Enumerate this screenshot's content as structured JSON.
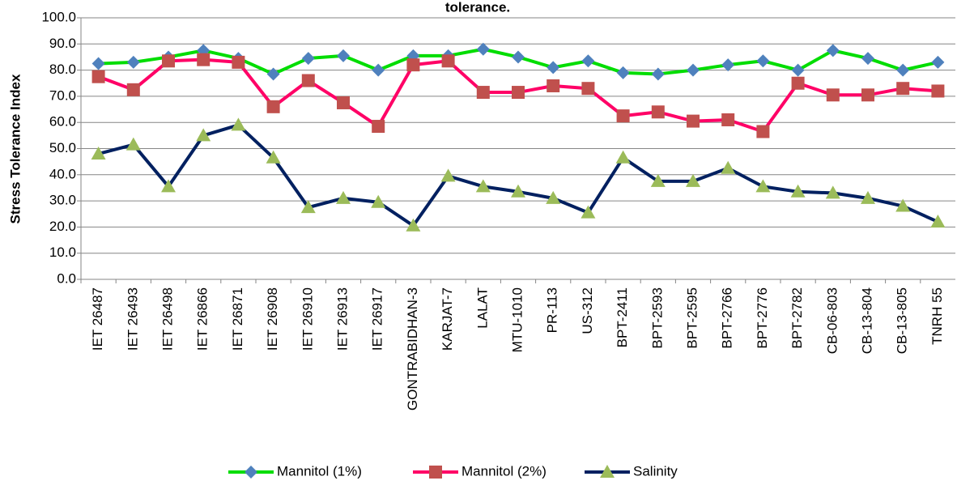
{
  "chart_data": {
    "type": "line",
    "title": "tolerance.",
    "y_label": "Stress Tolerance Index",
    "categories": [
      "IET 26487",
      "IET 26493",
      "IET 26498",
      "IET 26866",
      "IET 26871",
      "IET 26908",
      "IET 26910",
      "IET 26913",
      "IET 26917",
      "GONTRABIDHAN-3",
      "KARJAT-7",
      "LALAT",
      "MTU-1010",
      "PR-113",
      "US-312",
      "BPT-2411",
      "BPT-2593",
      "BPT-2595",
      "BPT-2766",
      "BPT-2776",
      "BPT-2782",
      "CB-06-803",
      "CB-13-804",
      "CB-13-805",
      "TNRH 55"
    ],
    "series": [
      {
        "name": "Mannitol (1%)",
        "color": "#00dd00",
        "marker_color": "#4f81bd",
        "marker": "diamond",
        "values": [
          82.5,
          83,
          85,
          87.5,
          84.5,
          78.5,
          84.5,
          85.5,
          80,
          85.5,
          85.5,
          88,
          85,
          81,
          83.5,
          79,
          78.5,
          80,
          82,
          83.5,
          80,
          87.5,
          84.5,
          80,
          83
        ]
      },
      {
        "name": "Mannitol (2%)",
        "color": "#ff0066",
        "marker_color": "#c0504d",
        "marker": "square",
        "values": [
          77.5,
          72.5,
          83.5,
          84,
          83,
          66,
          76,
          67.5,
          58.5,
          82,
          83.5,
          71.5,
          71.5,
          74,
          73,
          62.5,
          64,
          60.5,
          61,
          56.5,
          75,
          70.5,
          70.5,
          73,
          72
        ]
      },
      {
        "name": "Salinity",
        "color": "#002060",
        "marker_color": "#9bbb59",
        "marker": "triangle",
        "values": [
          48,
          51.5,
          35.5,
          55,
          59,
          46.5,
          27.5,
          31,
          29.5,
          20.5,
          39.5,
          35.5,
          33.5,
          31,
          25.5,
          46.5,
          37.5,
          37.5,
          42.5,
          35.5,
          33.5,
          33,
          31,
          28,
          22
        ]
      }
    ],
    "ylim": [
      0,
      100
    ],
    "yticks": [
      {
        "value": 0,
        "label": "0.0"
      },
      {
        "value": 10,
        "label": "10.0"
      },
      {
        "value": 20,
        "label": "20.0"
      },
      {
        "value": 30,
        "label": "30.0"
      },
      {
        "value": 40,
        "label": "40.0"
      },
      {
        "value": 50,
        "label": "50.0"
      },
      {
        "value": 60,
        "label": "60.0"
      },
      {
        "value": 70,
        "label": "70.0"
      },
      {
        "value": 80,
        "label": "80.0"
      },
      {
        "value": 90,
        "label": "90.0"
      },
      {
        "value": 100,
        "label": "100.0"
      }
    ],
    "grid": true,
    "legend": "bottom"
  }
}
